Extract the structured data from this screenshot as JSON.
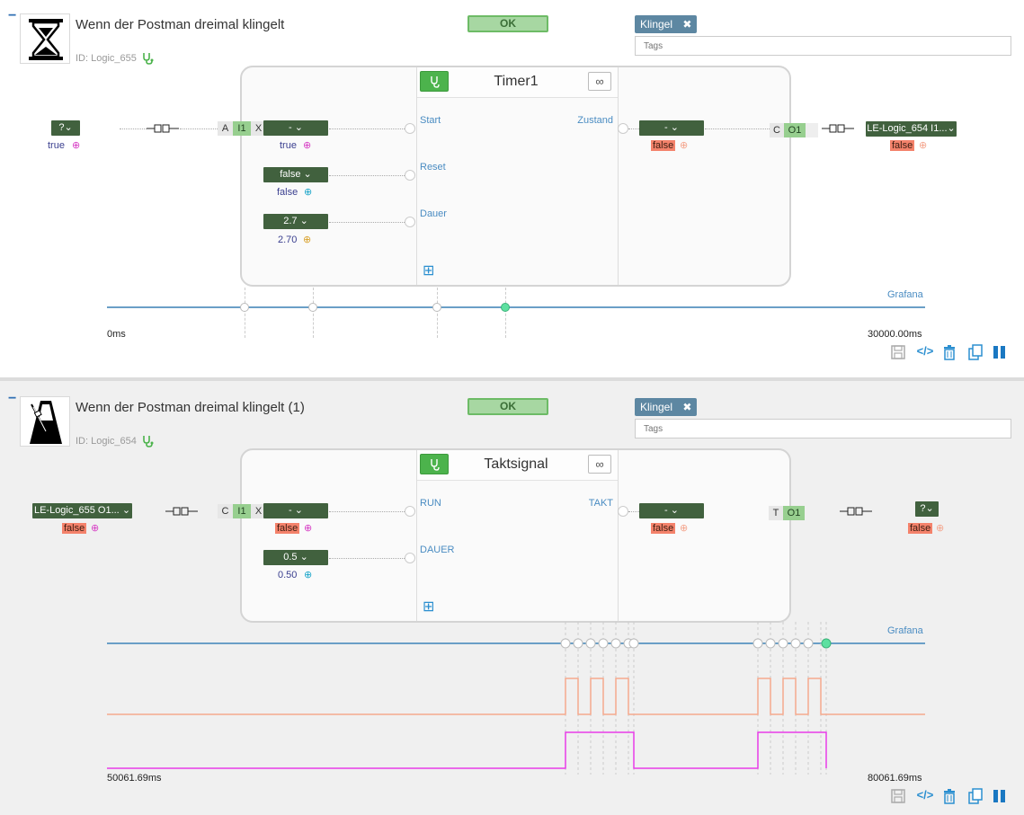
{
  "panels": [
    {
      "collapse": "−",
      "title": "Wenn der Postman dreimal klingelt",
      "id": "ID: Logic_655",
      "ok": "OK",
      "tag": "Klingel",
      "tags_placeholder": "Tags",
      "block_title": "Timer1",
      "inf": "∞",
      "inputs": [
        "Start",
        "Reset",
        "Dauer"
      ],
      "output": "Zustand",
      "source_dd": "?",
      "source_val": "true",
      "conn_pills": [
        "A",
        "I1",
        "X"
      ],
      "in1_dd": "-",
      "in1_val": "true",
      "in2_dd": "false",
      "in2_val": "false",
      "in3_dd": "2.7",
      "in3_val": "2.70",
      "out_dd": "-",
      "out_val": "false",
      "out_pills": [
        "C",
        "O1"
      ],
      "target_dd": "LE-Logic_654 I1...",
      "target_val": "false",
      "grafana": "Grafana",
      "t_start": "0ms",
      "t_end": "30000.00ms"
    },
    {
      "collapse": "−",
      "title": "Wenn der Postman dreimal klingelt (1)",
      "id": "ID: Logic_654",
      "ok": "OK",
      "tag": "Klingel",
      "tags_placeholder": "Tags",
      "block_title": "Taktsignal",
      "inf": "∞",
      "inputs": [
        "RUN",
        "DAUER"
      ],
      "output": "TAKT",
      "source_dd": "LE-Logic_655 O1...",
      "source_val": "false",
      "conn_pills": [
        "C",
        "I1",
        "X"
      ],
      "in1_dd": "-",
      "in1_val": "false",
      "in2_dd": "0.5",
      "in2_val": "0.50",
      "out_dd": "-",
      "out_val": "false",
      "out_pills": [
        "T",
        "O1"
      ],
      "target_dd": "?",
      "target_val": "false",
      "grafana": "Grafana",
      "t_start": "50061.69ms",
      "t_end": "80061.69ms"
    }
  ],
  "icons": {
    "close": "✖",
    "caret": "⌄",
    "magnifier": "⊕",
    "add": "⊞",
    "save": "save-icon",
    "code": "</>",
    "trash": "trash-icon",
    "copy": "copy-icon",
    "pause": "pause-icon"
  },
  "colors": {
    "accent": "#4a8cc2",
    "ok_bg": "#a7d7a2",
    "dropdown": "#41613e",
    "false_bg": "#f4826b",
    "tag_bg": "#5d87a2",
    "signal_orange": "#f6a98d",
    "signal_magenta": "#e83ce8"
  }
}
